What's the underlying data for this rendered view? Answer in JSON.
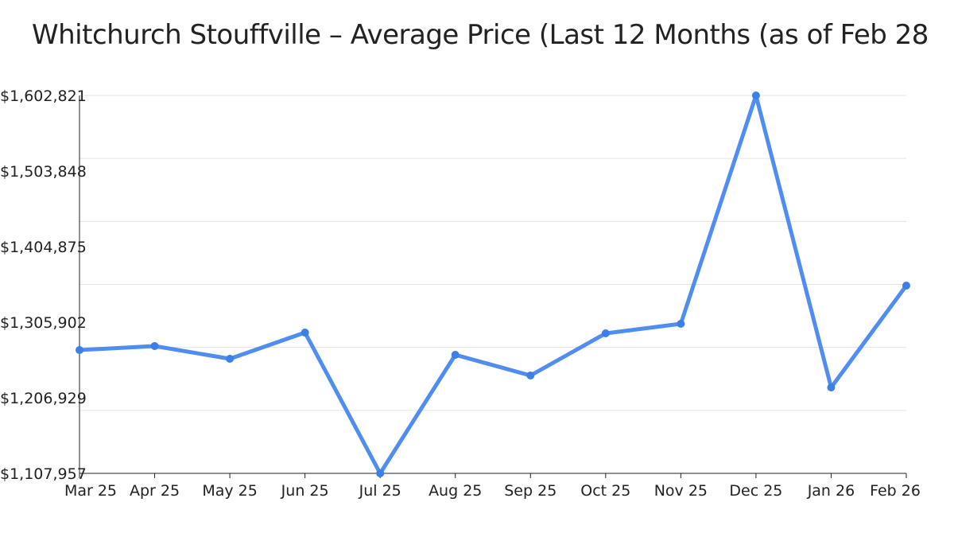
{
  "chart_data": {
    "type": "line",
    "title": "Whitchurch Stouffville – Average Price (Last 12 Months (as of Feb 28",
    "xlabel": "",
    "ylabel": "",
    "categories": [
      "Mar 25",
      "Apr 25",
      "May 25",
      "Jun 25",
      "Jul 25",
      "Aug 25",
      "Sep 25",
      "Oct 25",
      "Nov 25",
      "Dec 25",
      "Jan 26",
      "Feb 26"
    ],
    "series": [
      {
        "values": [
          1269445,
          1274654,
          1257985,
          1292365,
          1107957,
          1263194,
          1236107,
          1291323,
          1303824,
          1602821,
          1220480,
          1353831
        ]
      }
    ],
    "ylim": [
      1107957,
      1602821
    ],
    "yticks": [
      1107957,
      1206929,
      1305902,
      1404875,
      1503848,
      1602821
    ],
    "ytick_labels": [
      "$1,107,957",
      "$1,206,929",
      "$1,305,902",
      "$1,404,875",
      "$1,503,848",
      "$1,602,821"
    ],
    "grid": true,
    "legend": "none",
    "line_color": "#4f8ef0"
  }
}
